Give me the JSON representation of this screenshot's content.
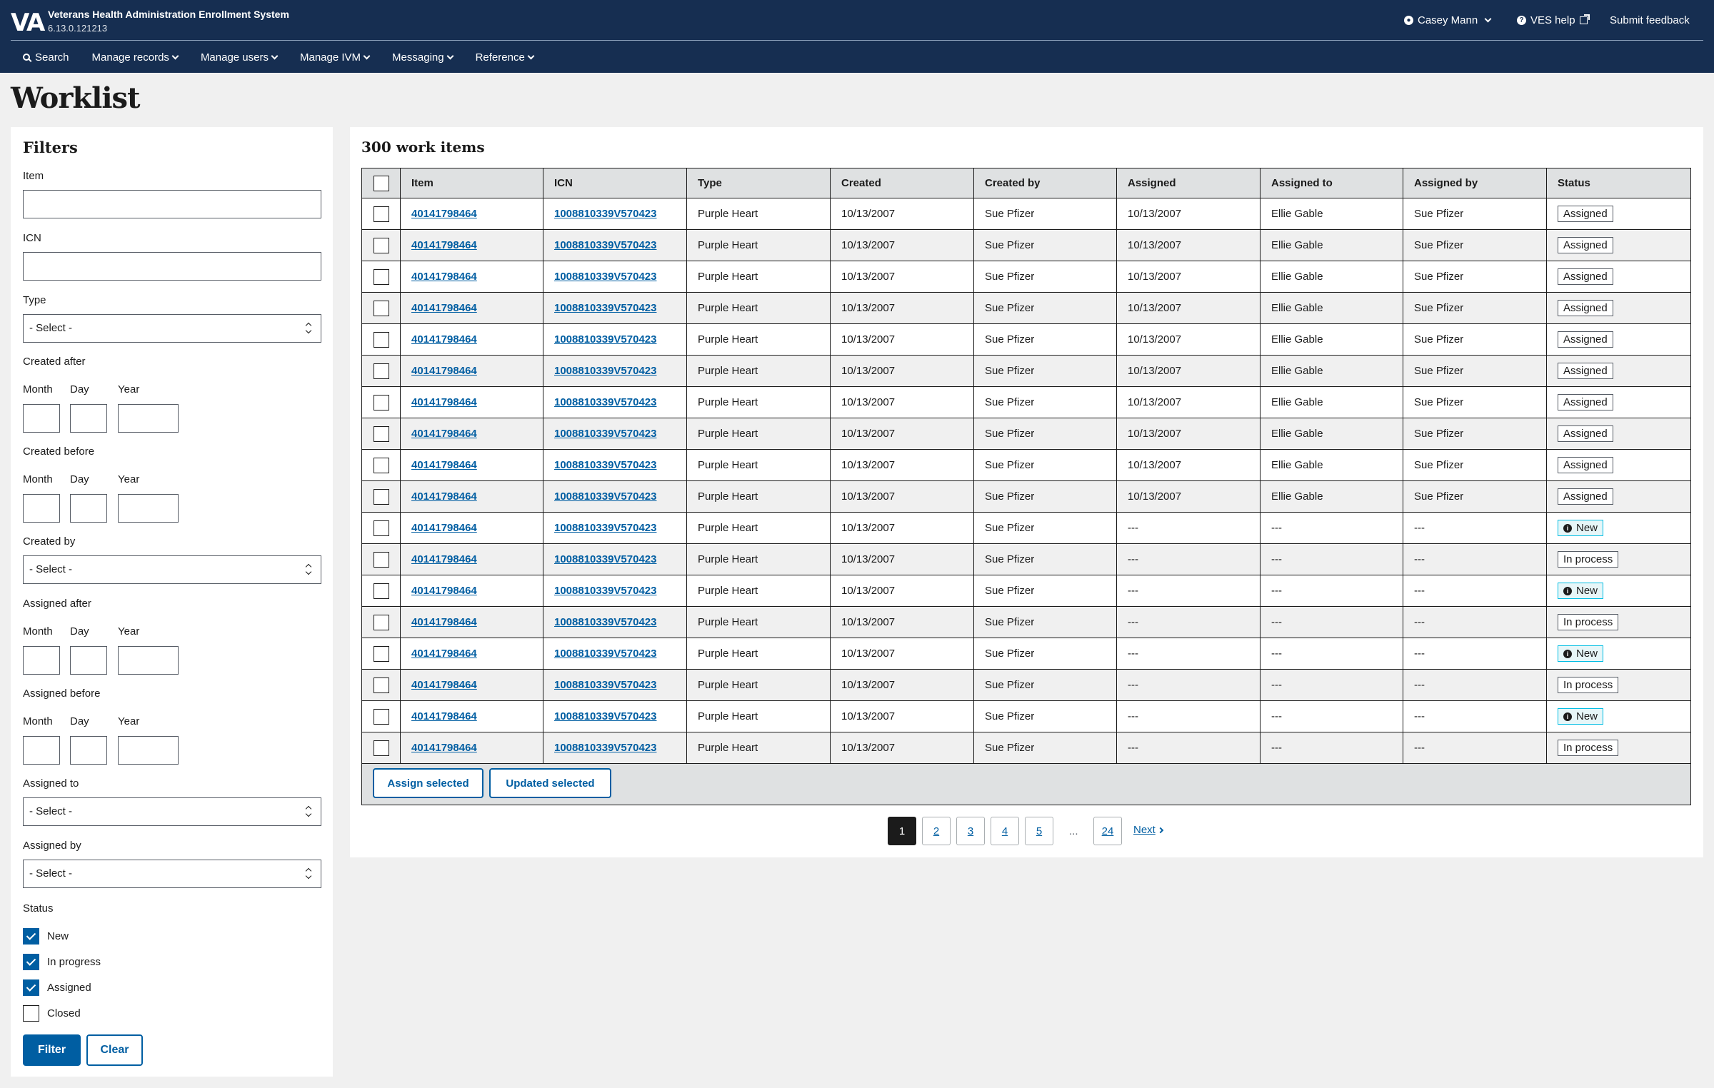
{
  "header": {
    "logo": "VA",
    "app_title": "Veterans Health Administration Enrollment System",
    "version": "6.13.0.121213",
    "user_name": "Casey Mann",
    "help_label": "VES help",
    "feedback_label": "Submit feedback"
  },
  "nav": {
    "search": "Search",
    "manage_records": "Manage records",
    "manage_users": "Manage users",
    "manage_ivm": "Manage IVM",
    "messaging": "Messaging",
    "reference": "Reference"
  },
  "page_title": "Worklist",
  "filters": {
    "heading": "Filters",
    "item_label": "Item",
    "icn_label": "ICN",
    "type_label": "Type",
    "created_after_label": "Created after",
    "created_before_label": "Created before",
    "created_by_label": "Created by",
    "assigned_after_label": "Assigned after",
    "assigned_before_label": "Assigned before",
    "assigned_to_label": "Assigned to",
    "assigned_by_label": "Assigned by",
    "status_label": "Status",
    "month": "Month",
    "day": "Day",
    "year": "Year",
    "select_placeholder": "- Select -",
    "statuses": [
      {
        "label": "New",
        "checked": true
      },
      {
        "label": "In progress",
        "checked": true
      },
      {
        "label": "Assigned",
        "checked": true
      },
      {
        "label": "Closed",
        "checked": false
      }
    ],
    "filter_button": "Filter",
    "clear_button": "Clear"
  },
  "worklist": {
    "count_heading": "300 work items",
    "columns": [
      "Item",
      "ICN",
      "Type",
      "Created",
      "Created by",
      "Assigned",
      "Assigned to",
      "Assigned by",
      "Status"
    ],
    "rows": [
      {
        "item": "40141798464",
        "icn": "1008810339V570423",
        "type": "Purple Heart",
        "created": "10/13/2007",
        "created_by": "Sue Pfizer",
        "assigned": "10/13/2007",
        "assigned_to": "Ellie Gable",
        "assigned_by": "Sue Pfizer",
        "status": "Assigned"
      },
      {
        "item": "40141798464",
        "icn": "1008810339V570423",
        "type": "Purple Heart",
        "created": "10/13/2007",
        "created_by": "Sue Pfizer",
        "assigned": "10/13/2007",
        "assigned_to": "Ellie Gable",
        "assigned_by": "Sue Pfizer",
        "status": "Assigned"
      },
      {
        "item": "40141798464",
        "icn": "1008810339V570423",
        "type": "Purple Heart",
        "created": "10/13/2007",
        "created_by": "Sue Pfizer",
        "assigned": "10/13/2007",
        "assigned_to": "Ellie Gable",
        "assigned_by": "Sue Pfizer",
        "status": "Assigned"
      },
      {
        "item": "40141798464",
        "icn": "1008810339V570423",
        "type": "Purple Heart",
        "created": "10/13/2007",
        "created_by": "Sue Pfizer",
        "assigned": "10/13/2007",
        "assigned_to": "Ellie Gable",
        "assigned_by": "Sue Pfizer",
        "status": "Assigned"
      },
      {
        "item": "40141798464",
        "icn": "1008810339V570423",
        "type": "Purple Heart",
        "created": "10/13/2007",
        "created_by": "Sue Pfizer",
        "assigned": "10/13/2007",
        "assigned_to": "Ellie Gable",
        "assigned_by": "Sue Pfizer",
        "status": "Assigned"
      },
      {
        "item": "40141798464",
        "icn": "1008810339V570423",
        "type": "Purple Heart",
        "created": "10/13/2007",
        "created_by": "Sue Pfizer",
        "assigned": "10/13/2007",
        "assigned_to": "Ellie Gable",
        "assigned_by": "Sue Pfizer",
        "status": "Assigned"
      },
      {
        "item": "40141798464",
        "icn": "1008810339V570423",
        "type": "Purple Heart",
        "created": "10/13/2007",
        "created_by": "Sue Pfizer",
        "assigned": "10/13/2007",
        "assigned_to": "Ellie Gable",
        "assigned_by": "Sue Pfizer",
        "status": "Assigned"
      },
      {
        "item": "40141798464",
        "icn": "1008810339V570423",
        "type": "Purple Heart",
        "created": "10/13/2007",
        "created_by": "Sue Pfizer",
        "assigned": "10/13/2007",
        "assigned_to": "Ellie Gable",
        "assigned_by": "Sue Pfizer",
        "status": "Assigned"
      },
      {
        "item": "40141798464",
        "icn": "1008810339V570423",
        "type": "Purple Heart",
        "created": "10/13/2007",
        "created_by": "Sue Pfizer",
        "assigned": "10/13/2007",
        "assigned_to": "Ellie Gable",
        "assigned_by": "Sue Pfizer",
        "status": "Assigned"
      },
      {
        "item": "40141798464",
        "icn": "1008810339V570423",
        "type": "Purple Heart",
        "created": "10/13/2007",
        "created_by": "Sue Pfizer",
        "assigned": "10/13/2007",
        "assigned_to": "Ellie Gable",
        "assigned_by": "Sue Pfizer",
        "status": "Assigned"
      },
      {
        "item": "40141798464",
        "icn": "1008810339V570423",
        "type": "Purple Heart",
        "created": "10/13/2007",
        "created_by": "Sue Pfizer",
        "assigned": "---",
        "assigned_to": "---",
        "assigned_by": "---",
        "status": "New"
      },
      {
        "item": "40141798464",
        "icn": "1008810339V570423",
        "type": "Purple Heart",
        "created": "10/13/2007",
        "created_by": "Sue Pfizer",
        "assigned": "---",
        "assigned_to": "---",
        "assigned_by": "---",
        "status": "In process"
      },
      {
        "item": "40141798464",
        "icn": "1008810339V570423",
        "type": "Purple Heart",
        "created": "10/13/2007",
        "created_by": "Sue Pfizer",
        "assigned": "---",
        "assigned_to": "---",
        "assigned_by": "---",
        "status": "New"
      },
      {
        "item": "40141798464",
        "icn": "1008810339V570423",
        "type": "Purple Heart",
        "created": "10/13/2007",
        "created_by": "Sue Pfizer",
        "assigned": "---",
        "assigned_to": "---",
        "assigned_by": "---",
        "status": "In process"
      },
      {
        "item": "40141798464",
        "icn": "1008810339V570423",
        "type": "Purple Heart",
        "created": "10/13/2007",
        "created_by": "Sue Pfizer",
        "assigned": "---",
        "assigned_to": "---",
        "assigned_by": "---",
        "status": "New"
      },
      {
        "item": "40141798464",
        "icn": "1008810339V570423",
        "type": "Purple Heart",
        "created": "10/13/2007",
        "created_by": "Sue Pfizer",
        "assigned": "---",
        "assigned_to": "---",
        "assigned_by": "---",
        "status": "In process"
      },
      {
        "item": "40141798464",
        "icn": "1008810339V570423",
        "type": "Purple Heart",
        "created": "10/13/2007",
        "created_by": "Sue Pfizer",
        "assigned": "---",
        "assigned_to": "---",
        "assigned_by": "---",
        "status": "New"
      },
      {
        "item": "40141798464",
        "icn": "1008810339V570423",
        "type": "Purple Heart",
        "created": "10/13/2007",
        "created_by": "Sue Pfizer",
        "assigned": "---",
        "assigned_to": "---",
        "assigned_by": "---",
        "status": "In process"
      }
    ],
    "assign_selected": "Assign selected",
    "updated_selected": "Updated selected"
  },
  "pagination": {
    "current": "1",
    "pages": [
      "2",
      "3",
      "4",
      "5"
    ],
    "ellipsis": "...",
    "last": "24",
    "next": "Next"
  },
  "colors": {
    "header_bg": "#162e51",
    "primary": "#005ea2",
    "page_bg": "#f0f0f0",
    "new_tag_border": "#00bde3"
  }
}
